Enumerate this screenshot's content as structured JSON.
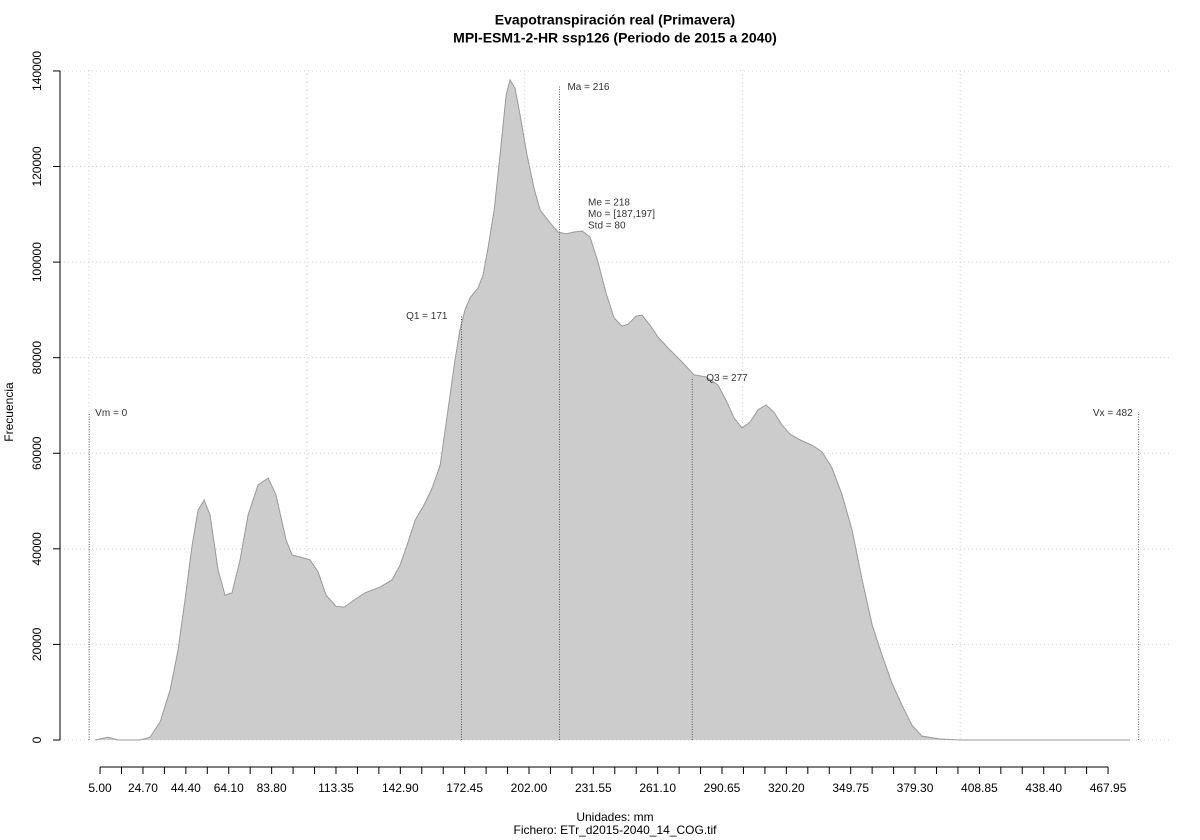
{
  "chart_data": {
    "type": "area",
    "title": "Evapotranspiración real (Primavera)",
    "subtitle": "MPI-ESM1-2-HR ssp126 (Periodo de 2015 a 2040)",
    "xlabel": "Unidades: mm",
    "caption": "Fichero: ETr_d2015-2040_14_COG.tif",
    "ylabel": "Frecuencia",
    "fill": "#cccccc",
    "stroke": "#999999",
    "x": [
      2.7,
      8.7,
      13.3,
      23.4,
      28.0,
      32.6,
      37.2,
      40.8,
      44.0,
      47.3,
      50.0,
      52.8,
      55.5,
      59.2,
      62.4,
      65.6,
      69.3,
      73.0,
      77.6,
      82.2,
      85.8,
      90.4,
      93.2,
      96.9,
      101.4,
      105.1,
      108.8,
      113.4,
      117.1,
      121.7,
      126.7,
      133.6,
      139.1,
      142.8,
      146.0,
      149.7,
      153.8,
      157.5,
      161.2,
      164.8,
      168.0,
      170.3,
      172.6,
      174.9,
      178.6,
      180.9,
      183.2,
      186.0,
      188.7,
      191.5,
      193.3,
      195.6,
      197.9,
      201.1,
      204.3,
      207.1,
      211.7,
      215.3,
      219.0,
      222.7,
      226.4,
      230.0,
      233.7,
      237.4,
      241.1,
      244.7,
      247.5,
      251.2,
      253.9,
      257.6,
      261.3,
      266.8,
      272.3,
      277.8,
      283.3,
      288.8,
      292.5,
      296.2,
      299.8,
      303.5,
      307.2,
      310.9,
      314.5,
      318.2,
      321.9,
      326.5,
      332.0,
      336.6,
      341.2,
      345.8,
      350.4,
      355.0,
      359.6,
      364.1,
      368.7,
      373.3,
      377.9,
      382.5,
      390.8,
      400.0,
      478.0
    ],
    "values": [
      0,
      600,
      0,
      0,
      600,
      3800,
      10500,
      18800,
      29300,
      40800,
      48100,
      50200,
      47100,
      35600,
      30300,
      30800,
      37700,
      47100,
      53400,
      54800,
      51300,
      41900,
      38700,
      38300,
      37700,
      35200,
      30300,
      28000,
      27800,
      29300,
      30800,
      32000,
      33500,
      36600,
      40800,
      46000,
      49200,
      52700,
      57500,
      69100,
      79500,
      85800,
      90000,
      92500,
      94600,
      97300,
      103000,
      110900,
      122400,
      135000,
      138100,
      136400,
      130800,
      122400,
      115500,
      110900,
      108200,
      106300,
      105900,
      106300,
      106500,
      105300,
      100000,
      93500,
      88300,
      86600,
      87000,
      88700,
      88900,
      86800,
      84300,
      81600,
      79100,
      76400,
      76000,
      74300,
      71100,
      67400,
      65300,
      66500,
      69100,
      70100,
      68600,
      65900,
      64000,
      62800,
      61700,
      60300,
      56900,
      51300,
      43900,
      33500,
      24100,
      17800,
      11900,
      7300,
      3100,
      800,
      200,
      0,
      0
    ],
    "xlim": [
      -13.4,
      496.4
    ],
    "ylim": [
      -5650,
      142290
    ],
    "xticks": [
      {
        "value": 5,
        "label": "5.00"
      },
      {
        "value": 24.7,
        "label": "24.70"
      },
      {
        "value": 44.4,
        "label": "44.40"
      },
      {
        "value": 64.1,
        "label": "64.10"
      },
      {
        "value": 83.8,
        "label": "83.80"
      },
      {
        "value": 113.35,
        "label": "113.35"
      },
      {
        "value": 142.9,
        "label": "142.90"
      },
      {
        "value": 172.45,
        "label": "172.45"
      },
      {
        "value": 202,
        "label": "202.00"
      },
      {
        "value": 231.55,
        "label": "231.55"
      },
      {
        "value": 261.1,
        "label": "261.10"
      },
      {
        "value": 290.65,
        "label": "290.65"
      },
      {
        "value": 320.2,
        "label": "320.20"
      },
      {
        "value": 349.75,
        "label": "349.75"
      },
      {
        "value": 379.3,
        "label": "379.30"
      },
      {
        "value": 408.85,
        "label": "408.85"
      },
      {
        "value": 438.4,
        "label": "438.40"
      },
      {
        "value": 467.95,
        "label": "467.95"
      }
    ],
    "xminorticks": [
      14.85,
      34.55,
      54.25,
      73.95,
      93.65,
      103.5,
      123.2,
      133.05,
      152.75,
      162.6,
      182.3,
      192.15,
      211.85,
      221.7,
      241.4,
      251.25,
      270.95,
      280.8,
      300.5,
      310.35,
      330.05,
      339.9,
      359.6,
      369.45,
      389.15,
      399,
      418.7,
      428.55,
      448.25,
      458.1
    ],
    "yticks": [
      0,
      20000,
      40000,
      60000,
      80000,
      100000,
      120000,
      140000
    ],
    "xgrid": [
      0,
      100,
      200,
      300,
      400
    ],
    "grid": true,
    "stats": [
      {
        "label": "Vm = 0",
        "x": 0,
        "top": 68600
      },
      {
        "label": "Q1 = 171",
        "x": 171,
        "top": 88900
      },
      {
        "label": "Ma = 216",
        "x": 216,
        "top": 136800
      },
      {
        "label": "Q3 = 277",
        "x": 277,
        "top": 75900
      },
      {
        "label": "Vx = 482",
        "x": 482,
        "top": 68600
      }
    ],
    "annotations": [
      "Me = 218",
      "Mo = [187,197]",
      "Std = 80"
    ]
  }
}
